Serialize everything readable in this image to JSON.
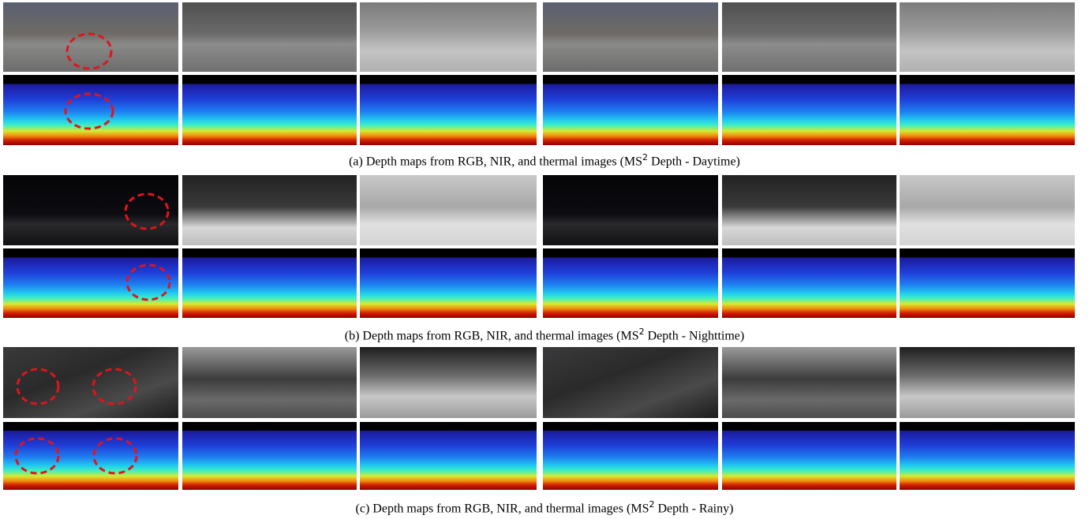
{
  "figure": {
    "captions": [
      {
        "before": "(a) Depth maps from RGB, NIR, and thermal images (",
        "dataset": "MS",
        "superscript": "2",
        "after": " Depth - Daytime)"
      },
      {
        "before": "(b) Depth maps from RGB, NIR, and thermal images (",
        "dataset": "MS",
        "superscript": "2",
        "after": " Depth - Nighttime)"
      },
      {
        "before": "(c) Depth maps from RGB, NIR, and thermal images (",
        "dataset": "MS",
        "superscript": "2",
        "after": " Depth - Rainy)"
      }
    ]
  }
}
